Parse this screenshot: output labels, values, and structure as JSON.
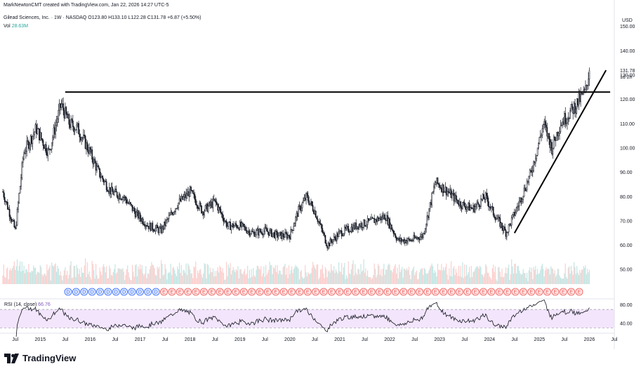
{
  "header": {
    "attribution": "MarkNewtonCMT created with TradingView.com, Jan 22, 2026 14:27 UTC-5",
    "symbol_name": "Gilead Sciences, Inc.",
    "interval": "1W",
    "exchange": "NASDAQ",
    "open": "O123.80",
    "high": "H133.10",
    "low": "L122.28",
    "close": "C131.78",
    "change": "+6.87 (+5.50%)",
    "volume_label": "Vol",
    "volume_value": "28.63M"
  },
  "price_axis": {
    "currency": "USD",
    "tick_labels": [
      "150.00",
      "140.00",
      "130.00",
      "120.00",
      "110.00",
      "100.00",
      "90.00",
      "80.00",
      "70.00",
      "60.00",
      "50.00"
    ],
    "last_price": "131.78",
    "countdown": "1d 2h"
  },
  "rsi": {
    "label": "RSI (14, close)",
    "value": "66.76",
    "tick_labels": [
      "80.00",
      "40.00"
    ],
    "band_upper": 70,
    "band_lower": 30
  },
  "time_axis": {
    "labels": [
      "Jul",
      "2015",
      "Jul",
      "2016",
      "Jul",
      "2017",
      "Jul",
      "2018",
      "Jul",
      "2019",
      "Jul",
      "2020",
      "Jul",
      "2021",
      "Jul",
      "2022",
      "Jul",
      "2023",
      "Jul",
      "2024",
      "Jul",
      "2025",
      "Jul",
      "2026",
      "Jul"
    ]
  },
  "event_markers": {
    "dividend_symbol": "D",
    "earnings_symbol": "E",
    "sequence": "DDDDDDDDDDDDEEEEEEEEEEEEEEEEEEEEEEEEEEEEEEEEEEEEEEEEEEEEEEEEEEEEE"
  },
  "brand": {
    "name": "TradingView"
  },
  "colors": {
    "up": "#26a69a",
    "down": "#ef5350",
    "candle": "#131722",
    "rsi_line": "#131722",
    "rsi_band": "#f3e5fc",
    "dividend": "#2962ff",
    "earnings_fill": "#fde8e8",
    "trendline": "#000000"
  },
  "chart_data": {
    "type": "candlestick",
    "title": "Gilead Sciences, Inc. · 1W · NASDAQ",
    "xlabel": "",
    "ylabel": "USD",
    "x_range": [
      "2014-04",
      "2026-07"
    ],
    "ylim": [
      44,
      158
    ],
    "log_scale": false,
    "grid": false,
    "approx_close_path": [
      {
        "date": "2014-04",
        "close": 82
      },
      {
        "date": "2014-07",
        "close": 66
      },
      {
        "date": "2014-09",
        "close": 98
      },
      {
        "date": "2014-12",
        "close": 108
      },
      {
        "date": "2015-03",
        "close": 98
      },
      {
        "date": "2015-06",
        "close": 118
      },
      {
        "date": "2015-08",
        "close": 110
      },
      {
        "date": "2015-10",
        "close": 108
      },
      {
        "date": "2016-01",
        "close": 98
      },
      {
        "date": "2016-03",
        "close": 90
      },
      {
        "date": "2016-06",
        "close": 82
      },
      {
        "date": "2016-09",
        "close": 80
      },
      {
        "date": "2016-12",
        "close": 73
      },
      {
        "date": "2017-03",
        "close": 68
      },
      {
        "date": "2017-06",
        "close": 66
      },
      {
        "date": "2017-10",
        "close": 77
      },
      {
        "date": "2018-01",
        "close": 82
      },
      {
        "date": "2018-04",
        "close": 74
      },
      {
        "date": "2018-07",
        "close": 78
      },
      {
        "date": "2018-10",
        "close": 68
      },
      {
        "date": "2019-01",
        "close": 68
      },
      {
        "date": "2019-04",
        "close": 65
      },
      {
        "date": "2019-07",
        "close": 66
      },
      {
        "date": "2019-10",
        "close": 64
      },
      {
        "date": "2020-01",
        "close": 64
      },
      {
        "date": "2020-03",
        "close": 74
      },
      {
        "date": "2020-05",
        "close": 80
      },
      {
        "date": "2020-07",
        "close": 74
      },
      {
        "date": "2020-10",
        "close": 60
      },
      {
        "date": "2021-01",
        "close": 65
      },
      {
        "date": "2021-05",
        "close": 68
      },
      {
        "date": "2021-09",
        "close": 70
      },
      {
        "date": "2021-12",
        "close": 72
      },
      {
        "date": "2022-03",
        "close": 62
      },
      {
        "date": "2022-06",
        "close": 62
      },
      {
        "date": "2022-09",
        "close": 64
      },
      {
        "date": "2022-12",
        "close": 86
      },
      {
        "date": "2023-03",
        "close": 82
      },
      {
        "date": "2023-06",
        "close": 77
      },
      {
        "date": "2023-09",
        "close": 75
      },
      {
        "date": "2023-12",
        "close": 80
      },
      {
        "date": "2024-02",
        "close": 73
      },
      {
        "date": "2024-05",
        "close": 65
      },
      {
        "date": "2024-08",
        "close": 77
      },
      {
        "date": "2024-11",
        "close": 90
      },
      {
        "date": "2025-02",
        "close": 110
      },
      {
        "date": "2025-04",
        "close": 100
      },
      {
        "date": "2025-06",
        "close": 110
      },
      {
        "date": "2025-09",
        "close": 116
      },
      {
        "date": "2025-12",
        "close": 123
      },
      {
        "date": "2026-01",
        "close": 131.78
      }
    ],
    "annotations": [
      {
        "kind": "horizontal_resistance",
        "from": "2015-07",
        "to": "2026-06",
        "price": 123
      },
      {
        "kind": "rising_trendline",
        "from": {
          "date": "2024-07",
          "price": 65
        },
        "to": {
          "date": "2026-05",
          "price": 132
        }
      }
    ],
    "rsi_ylim": [
      20,
      90
    ]
  }
}
